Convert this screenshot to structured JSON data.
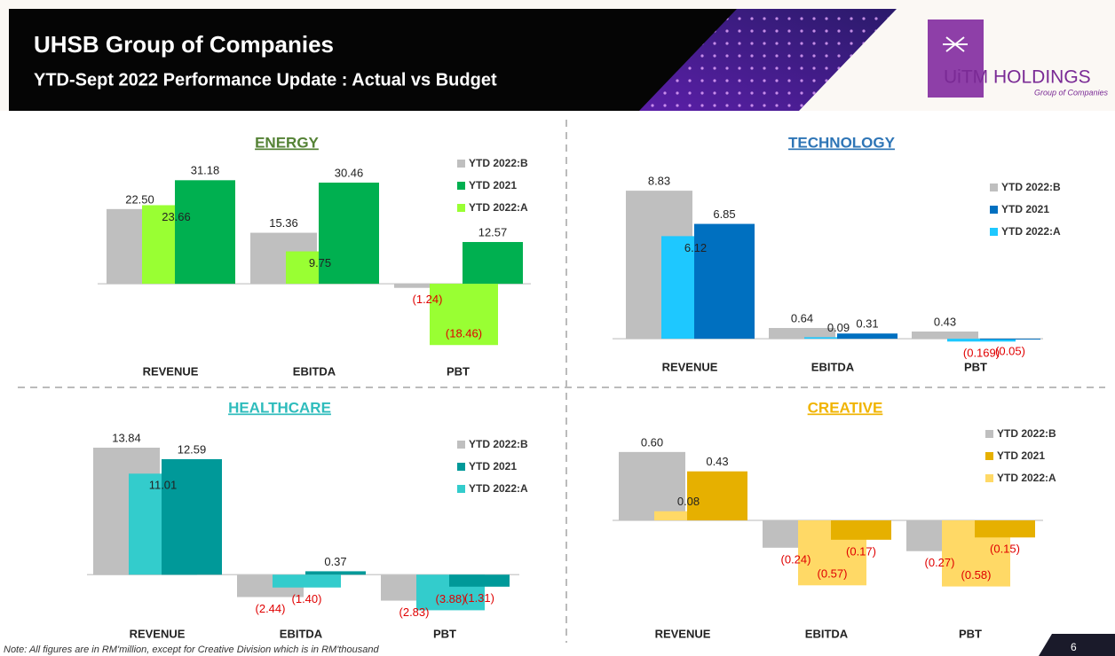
{
  "header": {
    "title": "UHSB Group of Companies",
    "subtitle": "YTD-Sept 2022 Performance Update : Actual vs Budget"
  },
  "logo": {
    "name": "UiTM HOLDINGS",
    "tagline": "Group of Companies"
  },
  "chart_data": [
    {
      "type": "bar",
      "title": "ENERGY",
      "title_color": "#548235",
      "categories": [
        "REVENUE",
        "EBITDA",
        "PBT"
      ],
      "ylim": [
        -20,
        35
      ],
      "series": [
        {
          "name": "YTD 2022:B",
          "color": "#bfbfbf",
          "values": [
            22.5,
            15.36,
            -1.24
          ],
          "value_labels": [
            "22.50",
            "15.36",
            "(1.24)"
          ]
        },
        {
          "name": "YTD 2021",
          "color": "#00b050",
          "values": [
            31.18,
            30.46,
            12.57
          ],
          "value_labels": [
            "31.18",
            "30.46",
            "12.57"
          ]
        },
        {
          "name": "YTD 2022:A",
          "color": "#99ff33",
          "values": [
            23.66,
            9.75,
            -18.46
          ],
          "value_labels": [
            "23.66",
            "9.75",
            "(18.46)"
          ]
        }
      ]
    },
    {
      "type": "bar",
      "title": "TECHNOLOGY",
      "title_color": "#2e75b6",
      "categories": [
        "REVENUE",
        "EBITDA",
        "PBT"
      ],
      "ylim": [
        -1,
        10
      ],
      "series": [
        {
          "name": "YTD 2022:B",
          "color": "#bfbfbf",
          "values": [
            8.83,
            0.64,
            0.43
          ],
          "value_labels": [
            "8.83",
            "0.64",
            "0.43"
          ]
        },
        {
          "name": "YTD 2021",
          "color": "#0070c0",
          "values": [
            6.85,
            0.31,
            -0.05
          ],
          "value_labels": [
            "6.85",
            "0.31",
            "(0.05)"
          ]
        },
        {
          "name": "YTD 2022:A",
          "color": "#1ec8ff",
          "values": [
            6.12,
            0.09,
            -0.169
          ],
          "value_labels": [
            "6.12",
            "0.09",
            "(0.169)"
          ]
        }
      ]
    },
    {
      "type": "bar",
      "title": "HEALTHCARE",
      "title_color": "#2ebcbc",
      "categories": [
        "REVENUE",
        "EBITDA",
        "PBT"
      ],
      "ylim": [
        -5,
        15
      ],
      "series": [
        {
          "name": "YTD 2022:B",
          "color": "#bfbfbf",
          "values": [
            13.84,
            -2.44,
            -2.83
          ],
          "value_labels": [
            "13.84",
            "(2.44)",
            "(2.83)"
          ]
        },
        {
          "name": "YTD 2021",
          "color": "#009999",
          "values": [
            12.59,
            0.37,
            -1.31
          ],
          "value_labels": [
            "12.59",
            "0.37",
            "(1.31)"
          ]
        },
        {
          "name": "YTD 2022:A",
          "color": "#33cccc",
          "values": [
            11.01,
            -1.4,
            -3.88
          ],
          "value_labels": [
            "11.01",
            "(1.40)",
            "(3.88)"
          ]
        }
      ]
    },
    {
      "type": "bar",
      "title": "CREATIVE",
      "title_color": "#f0b400",
      "categories": [
        "REVENUE",
        "EBITDA",
        "PBT"
      ],
      "ylim": [
        -0.7,
        0.7
      ],
      "series": [
        {
          "name": "YTD 2022:B",
          "color": "#bfbfbf",
          "values": [
            0.6,
            -0.24,
            -0.27
          ],
          "value_labels": [
            "0.60",
            "(0.24)",
            "(0.27)"
          ]
        },
        {
          "name": "YTD 2021",
          "color": "#e6b000",
          "values": [
            0.43,
            -0.17,
            -0.15
          ],
          "value_labels": [
            "0.43",
            "(0.17)",
            "(0.15)"
          ]
        },
        {
          "name": "YTD 2022:A",
          "color": "#ffd966",
          "values": [
            0.08,
            -0.57,
            -0.58
          ],
          "value_labels": [
            "0.08",
            "(0.57)",
            "(0.58)"
          ]
        }
      ]
    }
  ],
  "note": "Note: All figures are in RM'million, except for Creative Division which is in RM'thousand",
  "page_number": "6"
}
